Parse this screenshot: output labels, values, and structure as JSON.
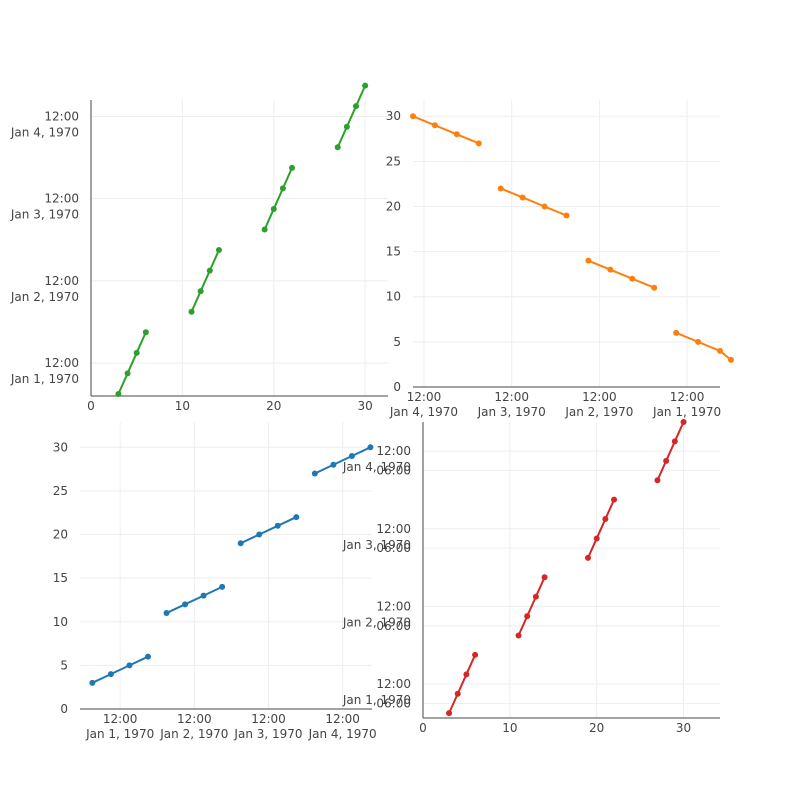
{
  "chart_data": [
    {
      "type": "line",
      "color": "#2ca02c",
      "x_axis": {
        "type": "linear",
        "range": [
          0,
          32.5
        ],
        "ticks": [
          0,
          10,
          20,
          30
        ],
        "line": true,
        "grid": true
      },
      "y_axis": {
        "type": "date",
        "range": [
          "1970-01-01T02:24:00",
          "1970-01-04T16:48:00"
        ],
        "ticks": [
          {
            "value": "1970-01-01T12:00:00",
            "lines": [
              "12:00",
              "Jan 1, 1970"
            ]
          },
          {
            "value": "1970-01-02T12:00:00",
            "lines": [
              "12:00",
              "Jan 2, 1970"
            ]
          },
          {
            "value": "1970-01-03T12:00:00",
            "lines": [
              "12:00",
              "Jan 3, 1970"
            ]
          },
          {
            "value": "1970-01-04T12:00:00",
            "lines": [
              "12:00",
              "Jan 4, 1970"
            ]
          }
        ],
        "line": true,
        "grid": true
      },
      "segments": [
        {
          "x": [
            3,
            4,
            5,
            6
          ],
          "y": [
            "1970-01-01T03:00:00",
            "1970-01-01T09:00:00",
            "1970-01-01T15:00:00",
            "1970-01-01T21:00:00"
          ]
        },
        {
          "x": [
            11,
            12,
            13,
            14
          ],
          "y": [
            "1970-01-02T03:00:00",
            "1970-01-02T09:00:00",
            "1970-01-02T15:00:00",
            "1970-01-02T21:00:00"
          ]
        },
        {
          "x": [
            19,
            20,
            21,
            22
          ],
          "y": [
            "1970-01-03T03:00:00",
            "1970-01-03T09:00:00",
            "1970-01-03T15:00:00",
            "1970-01-03T21:00:00"
          ]
        },
        {
          "x": [
            27,
            28,
            29,
            30
          ],
          "y": [
            "1970-01-04T03:00:00",
            "1970-01-04T09:00:00",
            "1970-01-04T15:00:00",
            "1970-01-04T21:00:00"
          ]
        }
      ]
    },
    {
      "type": "line",
      "color": "#ff7f0e",
      "x_axis": {
        "type": "date",
        "reversed": true,
        "range": [
          "1970-01-04T15:00:00",
          "1970-01-01T03:00:00"
        ],
        "ticks": [
          {
            "value": "1970-01-04T12:00:00",
            "lines": [
              "12:00",
              "Jan 4, 1970"
            ]
          },
          {
            "value": "1970-01-03T12:00:00",
            "lines": [
              "12:00",
              "Jan 3, 1970"
            ]
          },
          {
            "value": "1970-01-02T12:00:00",
            "lines": [
              "12:00",
              "Jan 2, 1970"
            ]
          },
          {
            "value": "1970-01-01T12:00:00",
            "lines": [
              "12:00",
              "Jan 1, 1970"
            ]
          }
        ],
        "line": true,
        "grid": true
      },
      "y_axis": {
        "type": "linear",
        "range": [
          0,
          31.8
        ],
        "ticks": [
          0,
          5,
          10,
          15,
          20,
          25,
          30
        ],
        "line": false,
        "grid": true
      },
      "segments": [
        {
          "x": [
            "1970-01-04T15:00:00",
            "1970-01-04T09:00:00",
            "1970-01-04T03:00:00",
            "1970-01-03T21:00:00"
          ],
          "y": [
            30,
            29,
            28,
            27
          ]
        },
        {
          "x": [
            "1970-01-03T15:00:00",
            "1970-01-03T09:00:00",
            "1970-01-03T03:00:00",
            "1970-01-02T21:00:00"
          ],
          "y": [
            22,
            21,
            20,
            19
          ]
        },
        {
          "x": [
            "1970-01-02T15:00:00",
            "1970-01-02T09:00:00",
            "1970-01-02T03:00:00",
            "1970-01-01T21:00:00"
          ],
          "y": [
            14,
            13,
            12,
            11
          ]
        },
        {
          "x": [
            "1970-01-01T15:00:00",
            "1970-01-01T09:00:00",
            "1970-01-01T03:00:00",
            "1970-01-01T00:00:00"
          ],
          "y": [
            6,
            5,
            4,
            3
          ]
        }
      ]
    },
    {
      "type": "line",
      "color": "#1f77b4",
      "x_axis": {
        "type": "date",
        "range": [
          "1969-12-31T23:00:00",
          "1970-01-04T21:30:00"
        ],
        "ticks": [
          {
            "value": "1970-01-01T12:00:00",
            "lines": [
              "12:00",
              "Jan 1, 1970"
            ]
          },
          {
            "value": "1970-01-02T12:00:00",
            "lines": [
              "12:00",
              "Jan 2, 1970"
            ]
          },
          {
            "value": "1970-01-03T12:00:00",
            "lines": [
              "12:00",
              "Jan 3, 1970"
            ]
          },
          {
            "value": "1970-01-04T12:00:00",
            "lines": [
              "12:00",
              "Jan 4, 1970"
            ]
          }
        ],
        "line": true,
        "grid": true
      },
      "y_axis": {
        "type": "linear",
        "range": [
          0,
          32.9
        ],
        "ticks": [
          0,
          5,
          10,
          15,
          20,
          25,
          30
        ],
        "line": false,
        "grid": true
      },
      "segments": [
        {
          "x": [
            "1970-01-01T03:00:00",
            "1970-01-01T09:00:00",
            "1970-01-01T15:00:00",
            "1970-01-01T21:00:00"
          ],
          "y": [
            3,
            4,
            5,
            6
          ]
        },
        {
          "x": [
            "1970-01-02T03:00:00",
            "1970-01-02T09:00:00",
            "1970-01-02T15:00:00",
            "1970-01-02T21:00:00"
          ],
          "y": [
            11,
            12,
            13,
            14
          ]
        },
        {
          "x": [
            "1970-01-03T03:00:00",
            "1970-01-03T09:00:00",
            "1970-01-03T15:00:00",
            "1970-01-03T21:00:00"
          ],
          "y": [
            19,
            20,
            21,
            22
          ]
        },
        {
          "x": [
            "1970-01-04T03:00:00",
            "1970-01-04T09:00:00",
            "1970-01-04T15:00:00",
            "1970-01-04T21:00:00"
          ],
          "y": [
            27,
            28,
            29,
            30
          ]
        }
      ]
    },
    {
      "type": "line",
      "color": "#d62728",
      "x_axis": {
        "type": "linear",
        "range": [
          0,
          34.2
        ],
        "ticks": [
          0,
          10,
          20,
          30
        ],
        "line": true,
        "grid": true
      },
      "y_axis": {
        "type": "date",
        "reversed": true,
        "range": [
          "1970-01-01T01:30:00",
          "1970-01-04T21:00:00"
        ],
        "ticks": [
          {
            "value": "1970-01-01T06:00:00",
            "lines": [
              "06:00"
            ]
          },
          {
            "value": "1970-01-01T12:00:00",
            "lines": [
              "12:00",
              "Jan 1, 1970"
            ]
          },
          {
            "value": "1970-01-02T06:00:00",
            "lines": [
              "06:00"
            ]
          },
          {
            "value": "1970-01-02T12:00:00",
            "lines": [
              "12:00",
              "Jan 2, 1970"
            ]
          },
          {
            "value": "1970-01-03T06:00:00",
            "lines": [
              "06:00"
            ]
          },
          {
            "value": "1970-01-03T12:00:00",
            "lines": [
              "12:00",
              "Jan 3, 1970"
            ]
          },
          {
            "value": "1970-01-04T06:00:00",
            "lines": [
              "06:00"
            ]
          },
          {
            "value": "1970-01-04T12:00:00",
            "lines": [
              "12:00",
              "Jan 4, 1970"
            ]
          }
        ],
        "line": true,
        "grid": true
      },
      "segments": [
        {
          "x": [
            3,
            4,
            5,
            6
          ],
          "y": [
            "1970-01-01T03:00:00",
            "1970-01-01T09:00:00",
            "1970-01-01T15:00:00",
            "1970-01-01T21:00:00"
          ]
        },
        {
          "x": [
            11,
            12,
            13,
            14
          ],
          "y": [
            "1970-01-02T03:00:00",
            "1970-01-02T09:00:00",
            "1970-01-02T15:00:00",
            "1970-01-02T21:00:00"
          ]
        },
        {
          "x": [
            19,
            20,
            21,
            22
          ],
          "y": [
            "1970-01-03T03:00:00",
            "1970-01-03T09:00:00",
            "1970-01-03T15:00:00",
            "1970-01-03T21:00:00"
          ]
        },
        {
          "x": [
            27,
            28,
            29,
            30
          ],
          "y": [
            "1970-01-04T03:00:00",
            "1970-01-04T09:00:00",
            "1970-01-04T15:00:00",
            "1970-01-04T21:00:00"
          ]
        }
      ]
    }
  ]
}
